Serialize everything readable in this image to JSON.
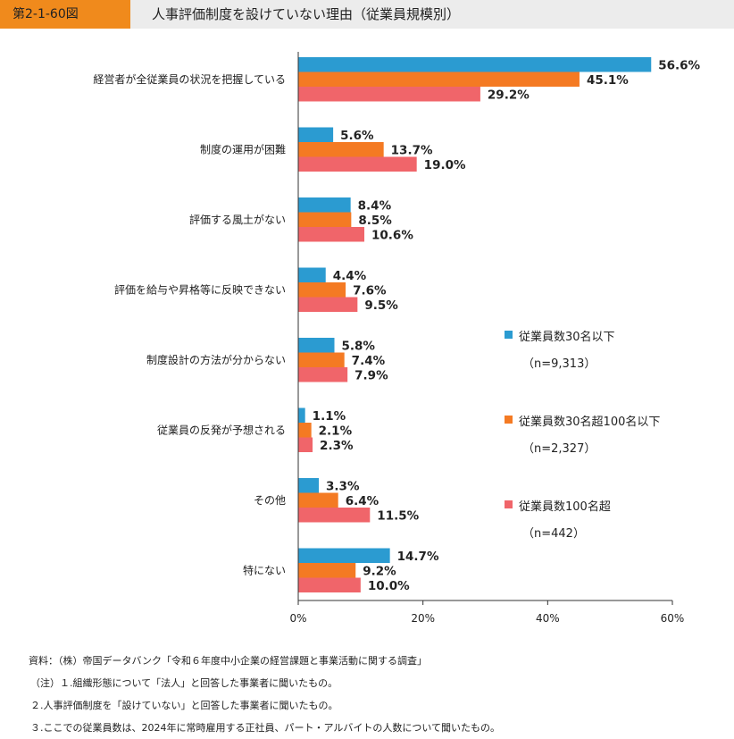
{
  "header": {
    "figure_label": "第2-1-60図",
    "title": "人事評価制度を設けていない理由（従業員規模別）"
  },
  "colors": {
    "header_accent": "#f08a1c",
    "header_bg": "#ececec"
  },
  "chart_data": {
    "type": "bar",
    "orientation": "horizontal",
    "title": "人事評価制度を設けていない理由（従業員規模別）",
    "categories": [
      "経営者が全従業員の状況を把握している",
      "制度の運用が困難",
      "評価する風土がない",
      "評価を給与や昇格等に反映できない",
      "制度設計の方法が分からない",
      "従業員の反発が予想される",
      "その他",
      "特にない"
    ],
    "series": [
      {
        "name": "従業員数30名以下",
        "n": "（n=9,313）",
        "color": "#2b9bd1",
        "values": [
          56.6,
          5.6,
          8.4,
          4.4,
          5.8,
          1.1,
          3.3,
          14.7
        ],
        "labels": [
          "56.6%",
          "5.6%",
          "8.4%",
          "4.4%",
          "5.8%",
          "1.1%",
          "3.3%",
          "14.7%"
        ]
      },
      {
        "name": "従業員数30名超100名以下",
        "n": "（n=2,327）",
        "color": "#f47a23",
        "values": [
          45.1,
          13.7,
          8.5,
          7.6,
          7.4,
          2.1,
          6.4,
          9.2
        ],
        "labels": [
          "45.1%",
          "13.7%",
          "8.5%",
          "7.6%",
          "7.4%",
          "2.1%",
          "6.4%",
          "9.2%"
        ]
      },
      {
        "name": "従業員数100名超",
        "n": "（n=442）",
        "color": "#f0656a",
        "values": [
          29.2,
          19.0,
          10.6,
          9.5,
          7.9,
          2.3,
          11.5,
          10.0
        ],
        "labels": [
          "29.2%",
          "19.0%",
          "10.6%",
          "9.5%",
          "7.9%",
          "2.3%",
          "11.5%",
          "10.0%"
        ]
      }
    ],
    "xlim": [
      0,
      60
    ],
    "xticks": [
      0,
      20,
      40,
      60
    ],
    "xtick_labels": [
      "0%",
      "20%",
      "40%",
      "60%"
    ],
    "grid": false,
    "legend_position": "right"
  },
  "notes": [
    "資料：（株）帝国データバンク「令和６年度中小企業の経営課題と事業活動に関する調査」",
    "（注）１.組織形態について「法人」と回答した事業者に聞いたもの。",
    "２.人事評価制度を「設けていない」と回答した事業者に聞いたもの。",
    "３.ここでの従業員数は、2024年に常時雇用する正社員、パート・アルバイトの人数について聞いたもの。"
  ]
}
